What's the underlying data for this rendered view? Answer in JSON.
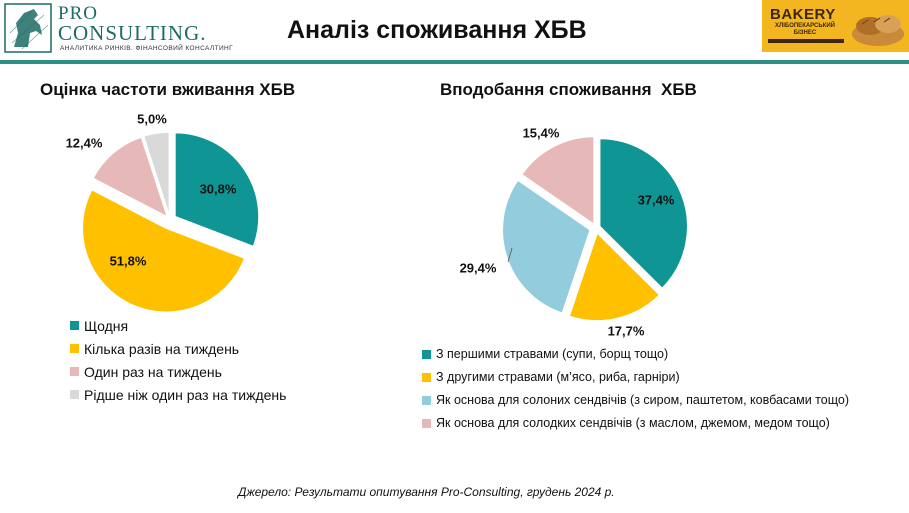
{
  "header": {
    "title": "Аналіз споживання ХБВ",
    "logo": {
      "pro": "PRO",
      "consulting": "CONSULTING.",
      "tagline": "АНАЛИТИКА РИНКІВ. ФІНАНСОВИЙ КОНСАЛТИНГ"
    },
    "banner": {
      "title": "BAKERY",
      "subtitle": "ХЛІБОПЕКАРСЬКИЙ БІЗНЕС"
    }
  },
  "colors": {
    "accent": "#2e8f87",
    "teal": "#0f9593",
    "gold": "#ffc000",
    "pink": "#e6b9b8",
    "grey": "#d9d9d9",
    "lightblue": "#93cddd"
  },
  "chart_data": [
    {
      "type": "pie",
      "title": "Оцінка частоти вживання ХБВ",
      "categories": [
        "Щодня",
        "Кілька разів на тиждень",
        "Один раз на тиждень",
        "Рідше ніж один раз на тиждень"
      ],
      "values": [
        30.8,
        51.8,
        12.4,
        5.0
      ],
      "labels": [
        "30,8%",
        "51,8%",
        "12,4%",
        "5,0%"
      ],
      "colors": [
        "#0f9593",
        "#ffc000",
        "#e6b9b8",
        "#d9d9d9"
      ],
      "legend": "bottom"
    },
    {
      "type": "pie",
      "title": "Вподобання споживання  ХБВ",
      "categories": [
        "З першими стравами (супи, борщ тощо)",
        "З другими стравами (м’ясо, риба, гарніри)",
        "Як основа для солоних сендвічів (з сиром, паштетом, ковбасами тощо)",
        "Як основа для солодких сендвічів (з маслом, джемом, медом тощо)"
      ],
      "values": [
        37.4,
        17.7,
        29.4,
        15.4
      ],
      "labels": [
        "37,4%",
        "17,7%",
        "29,4%",
        "15,4%"
      ],
      "colors": [
        "#0f9593",
        "#ffc000",
        "#93cddd",
        "#e6b9b8"
      ],
      "legend": "bottom"
    }
  ],
  "source": "Джерело: Результати опитування Pro-Consulting, грудень 2024 р."
}
